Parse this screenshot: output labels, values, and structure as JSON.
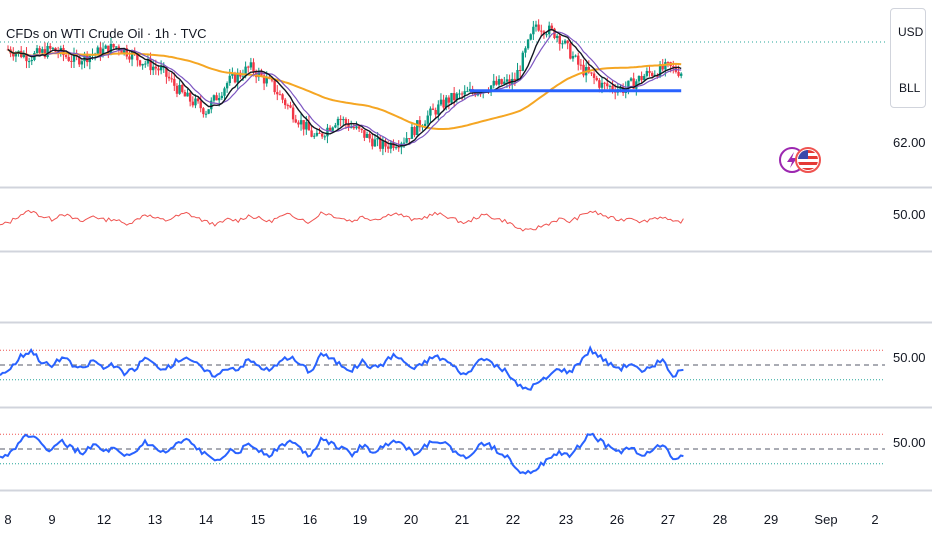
{
  "header": {
    "title": "CFDs on WTI Crude Oil · 1h · TVC"
  },
  "axis_box": {
    "currency": "USD",
    "unit": "BLL"
  },
  "price_axis": {
    "label": "62.00"
  },
  "panes": [
    {
      "id": "rsi-red",
      "label": "50.00"
    },
    {
      "id": "rsi-blue-1",
      "label": "50.00"
    },
    {
      "id": "rsi-blue-2",
      "label": "50.00"
    }
  ],
  "colors": {
    "up": "#089981",
    "down": "#f23645",
    "ma_long": "#f5a623",
    "ma_short1": "#131722",
    "ma_short2": "#7e57c2",
    "support": "#2962ff",
    "rsi_red": "#ef5350",
    "rsi_blue": "#2962ff",
    "level_upper": "#ef5350",
    "level_lower": "#26a69a",
    "level_mid": "#787b86"
  },
  "icons": [
    "lightning-bolt-icon",
    "us-flag-icon"
  ],
  "chart_data": [
    {
      "type": "candlestick",
      "title": "CFDs on WTI Crude Oil · 1h · TVC",
      "x_ticks": [
        "8",
        "9",
        "12",
        "13",
        "14",
        "15",
        "16",
        "19",
        "20",
        "21",
        "22",
        "23",
        "26",
        "27",
        "28",
        "29",
        "Sep",
        "2"
      ],
      "price_label": "62.00",
      "close_path": [
        [
          0,
          64.6
        ],
        [
          0.5,
          64.4
        ],
        [
          1,
          64.6
        ],
        [
          1.5,
          64.3
        ],
        [
          2,
          64.5
        ],
        [
          2.5,
          64.7
        ],
        [
          3,
          64.3
        ],
        [
          3.5,
          64.0
        ],
        [
          4,
          63.3
        ],
        [
          4.5,
          62.9
        ],
        [
          5,
          63.7
        ],
        [
          5.5,
          64.1
        ],
        [
          6,
          63.6
        ],
        [
          6.5,
          62.8
        ],
        [
          7,
          62.1
        ],
        [
          7.5,
          62.7
        ],
        [
          8,
          62.3
        ],
        [
          8.5,
          61.9
        ],
        [
          9,
          62.1
        ],
        [
          9.5,
          62.7
        ],
        [
          10,
          63.2
        ],
        [
          10.5,
          63.4
        ],
        [
          11,
          63.6
        ],
        [
          11.5,
          63.7
        ],
        [
          12,
          65.3
        ],
        [
          12.5,
          65.0
        ],
        [
          13,
          64.1
        ],
        [
          13.5,
          63.6
        ],
        [
          14,
          63.5
        ],
        [
          14.5,
          63.9
        ],
        [
          15,
          64.1
        ],
        [
          15.5,
          63.9
        ]
      ],
      "support_level_segment": {
        "from": 10.5,
        "to": 15.3,
        "value": 63.45
      },
      "series": [
        {
          "name": "",
          "style": "candles"
        },
        {
          "name": "",
          "style": "line",
          "color": "#f5a623"
        },
        {
          "name": "",
          "style": "line",
          "color": "#131722"
        },
        {
          "name": "",
          "style": "line",
          "color": "#7e57c2"
        }
      ]
    },
    {
      "type": "line",
      "pane": "oscillator",
      "label": "50.00",
      "ylim": [
        0,
        100
      ],
      "series": [
        {
          "name": "",
          "color": "#ef5350",
          "values": [
            40,
            47,
            60,
            66,
            57,
            51,
            62,
            53,
            47,
            58,
            50,
            52,
            43,
            48,
            61,
            53,
            49,
            56,
            62,
            54,
            46,
            42,
            51,
            49,
            58,
            53,
            47,
            55,
            60,
            53,
            45,
            64,
            59,
            53,
            48,
            56,
            51,
            55,
            63,
            57,
            49,
            55,
            61,
            58,
            50,
            44,
            55,
            59,
            52,
            47,
            35,
            30,
            37,
            44,
            52,
            47,
            56,
            66,
            60,
            53,
            50,
            55,
            46,
            53,
            56,
            45,
            49
          ]
        }
      ]
    },
    {
      "type": "line",
      "pane": "oscillator",
      "label": "50.00",
      "ylim": [
        0,
        100
      ],
      "levels": [
        70,
        50,
        30
      ],
      "series": [
        {
          "name": "",
          "color": "#2962ff",
          "values": [
            38,
            45,
            62,
            70,
            55,
            48,
            61,
            50,
            44,
            57,
            46,
            50,
            38,
            44,
            60,
            50,
            44,
            55,
            62,
            51,
            40,
            36,
            47,
            45,
            57,
            49,
            42,
            53,
            61,
            51,
            40,
            66,
            58,
            50,
            43,
            55,
            46,
            52,
            64,
            55,
            44,
            54,
            62,
            57,
            46,
            36,
            52,
            58,
            48,
            40,
            22,
            18,
            26,
            35,
            46,
            40,
            55,
            71,
            61,
            50,
            46,
            53,
            39,
            49,
            56,
            36,
            43
          ]
        }
      ]
    },
    {
      "type": "line",
      "pane": "oscillator",
      "label": "50.00",
      "ylim": [
        0,
        100
      ],
      "levels": [
        70,
        50,
        30
      ],
      "series": [
        {
          "name": "",
          "color": "#2962ff",
          "values": [
            38,
            45,
            62,
            70,
            55,
            48,
            61,
            50,
            44,
            57,
            46,
            50,
            38,
            44,
            60,
            50,
            44,
            55,
            62,
            51,
            40,
            36,
            47,
            45,
            57,
            49,
            42,
            53,
            61,
            51,
            40,
            66,
            58,
            50,
            43,
            55,
            46,
            52,
            64,
            55,
            44,
            54,
            62,
            57,
            46,
            36,
            52,
            58,
            48,
            40,
            22,
            18,
            26,
            35,
            46,
            40,
            55,
            71,
            61,
            50,
            46,
            53,
            39,
            49,
            56,
            36,
            43
          ]
        }
      ]
    }
  ]
}
